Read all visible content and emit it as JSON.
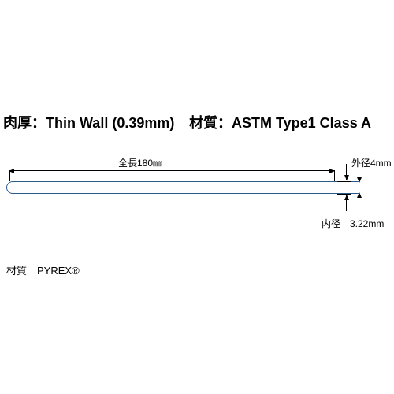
{
  "header": {
    "thickness_label": "肉厚：",
    "thickness_value": "Thin Wall (0.39mm)",
    "material_label": "材質：",
    "material_value": "ASTM Type1 Class A"
  },
  "diagram": {
    "type": "infographic",
    "length_label": "全長180㎜",
    "outer_dia_label": "外径4mm",
    "inner_dia_label": "内径　3.22mm",
    "colors": {
      "tube_stroke": "#2a5a8a",
      "dimension": "#000000",
      "background": "#ffffff"
    },
    "typography": {
      "header_fontsize_pt": 14,
      "label_fontsize_pt": 9,
      "footer_fontsize_pt": 10,
      "header_weight": "bold"
    },
    "values": {
      "length_mm": 180,
      "outer_diameter_mm": 4,
      "inner_diameter_mm": 3.22,
      "wall_thickness_mm": 0.39
    }
  },
  "footer": {
    "material_line": "材質　PYREX®"
  }
}
